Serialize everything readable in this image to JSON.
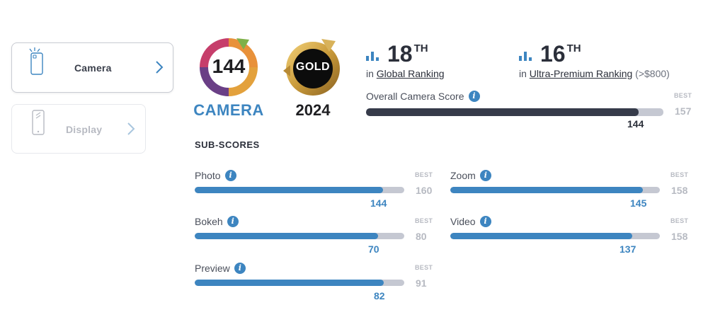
{
  "sidebar": {
    "tabs": [
      {
        "label": "Camera",
        "active": true,
        "icon": "phone-camera-icon"
      },
      {
        "label": "Display",
        "active": false,
        "icon": "phone-display-icon"
      }
    ]
  },
  "badges": {
    "camera": {
      "score": "144",
      "word": "CAMERA"
    },
    "gold": {
      "label": "GOLD",
      "year": "2024"
    }
  },
  "rankings": {
    "global": {
      "rank": "18",
      "suffix": "TH",
      "prefix": "in",
      "link": "Global Ranking",
      "extra": ""
    },
    "segment": {
      "rank": "16",
      "suffix": "TH",
      "prefix": "in",
      "link": "Ultra-Premium Ranking",
      "extra": "(>$800)"
    }
  },
  "overall": {
    "label": "Overall Camera Score",
    "best_label": "BEST",
    "best": 157,
    "score": 144
  },
  "subscores": {
    "title": "SUB-SCORES",
    "best_label": "BEST",
    "items": [
      {
        "label": "Photo",
        "score": 144,
        "best": 160
      },
      {
        "label": "Zoom",
        "score": 145,
        "best": 158
      },
      {
        "label": "Bokeh",
        "score": 70,
        "best": 80
      },
      {
        "label": "Video",
        "score": 137,
        "best": 158
      },
      {
        "label": "Preview",
        "score": 82,
        "best": 91
      }
    ]
  },
  "colors": {
    "accent": "#3d85c0",
    "overall_bar": "#363b4a",
    "track": "#c5c8d2",
    "best_text": "#b7bac2"
  }
}
